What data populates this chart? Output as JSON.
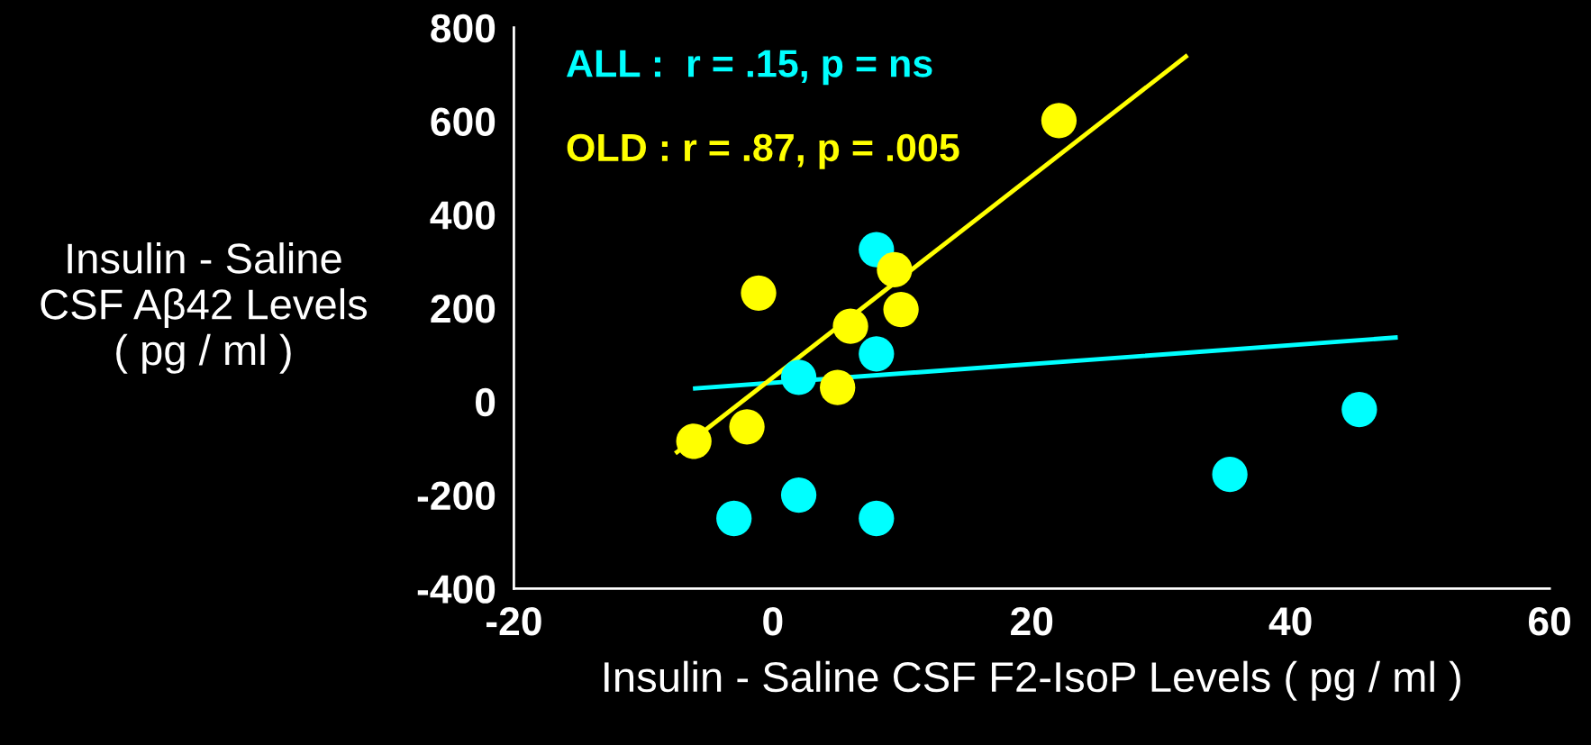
{
  "chart_data": {
    "type": "scatter",
    "xlabel": "Insulin - Saline CSF F2-IsoP Levels ( pg / ml )",
    "ylabel": "Insulin - Saline\nCSF Aβ42 Levels\n( pg / ml )",
    "xlim": [
      -20,
      60
    ],
    "xticks": [
      -20,
      0,
      20,
      40,
      60
    ],
    "ylim": [
      -400,
      800
    ],
    "yticks": [
      -400,
      -200,
      0,
      200,
      400,
      600,
      800
    ],
    "grid": false,
    "legend": false,
    "marker": "circle",
    "series": [
      {
        "name": "ALL :  r = .15, p = ns",
        "color": "#00ffff",
        "x": [
          8,
          8,
          2,
          45.3,
          35.3,
          2,
          -3,
          8
        ],
        "values": [
          325,
          102,
          52,
          -17,
          -156,
          -200,
          -250,
          -250
        ]
      },
      {
        "name": "OLD : r = .87, p = .005",
        "color": "#ffff00",
        "x": [
          22.1,
          9.4,
          -1.1,
          9.9,
          6.0,
          5.0,
          -2.0,
          -6.1
        ],
        "values": [
          601,
          282,
          232,
          197,
          161,
          30,
          -54,
          -85
        ]
      },
      {
        "type": "line",
        "marker": "none",
        "color": "#00ffff",
        "x": [
          -6.0,
          48.1
        ],
        "values": [
          28,
          137
        ]
      },
      {
        "type": "line",
        "marker": "none",
        "color": "#ffff00",
        "x": [
          -7.4,
          31.9
        ],
        "values": [
          -108,
          738
        ]
      }
    ]
  }
}
